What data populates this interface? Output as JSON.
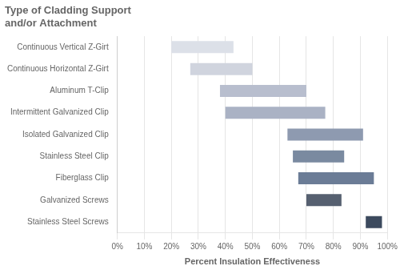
{
  "chart_data": {
    "type": "bar",
    "orientation": "horizontal",
    "title": "Type of Cladding Support",
    "subtitle": "and/or Attachment",
    "xlabel": "Percent Insulation Effectiveness",
    "categories": [
      "Continuous Vertical Z-Girt",
      "Continuous Horizontal Z-Girt",
      "Aluminum T-Clip",
      "Intermittent Galvanized Clip",
      "Isolated Galvanized Clip",
      "Stainless Steel Clip",
      "Fiberglass Clip",
      "Galvanized Screws",
      "Stainless Steel Screws"
    ],
    "values": [
      [
        0.2,
        0.43
      ],
      [
        0.27,
        0.5
      ],
      [
        0.38,
        0.7
      ],
      [
        0.4,
        0.77
      ],
      [
        0.63,
        0.91
      ],
      [
        0.65,
        0.84
      ],
      [
        0.67,
        0.95
      ],
      [
        0.7,
        0.83
      ],
      [
        0.92,
        0.98
      ]
    ],
    "colors": [
      "#dce0e8",
      "#d0d4de",
      "#b8bece",
      "#aab2c4",
      "#8e9ab0",
      "#7a8aa0",
      "#6b7c96",
      "#566070",
      "#3c4a5e"
    ],
    "xlim": [
      0.0,
      1.0
    ],
    "xticks": [
      {
        "value": 0.0,
        "label": "0%"
      },
      {
        "value": 0.1,
        "label": "10%"
      },
      {
        "value": 0.2,
        "label": "20%"
      },
      {
        "value": 0.3,
        "label": "30%"
      },
      {
        "value": 0.4,
        "label": "40%"
      },
      {
        "value": 0.5,
        "label": "50%"
      },
      {
        "value": 0.6,
        "label": "60%"
      },
      {
        "value": 0.7,
        "label": "70%"
      },
      {
        "value": 0.8,
        "label": "80%"
      },
      {
        "value": 0.9,
        "label": "90%"
      },
      {
        "value": 1.0,
        "label": "100%"
      }
    ],
    "grid": true
  }
}
